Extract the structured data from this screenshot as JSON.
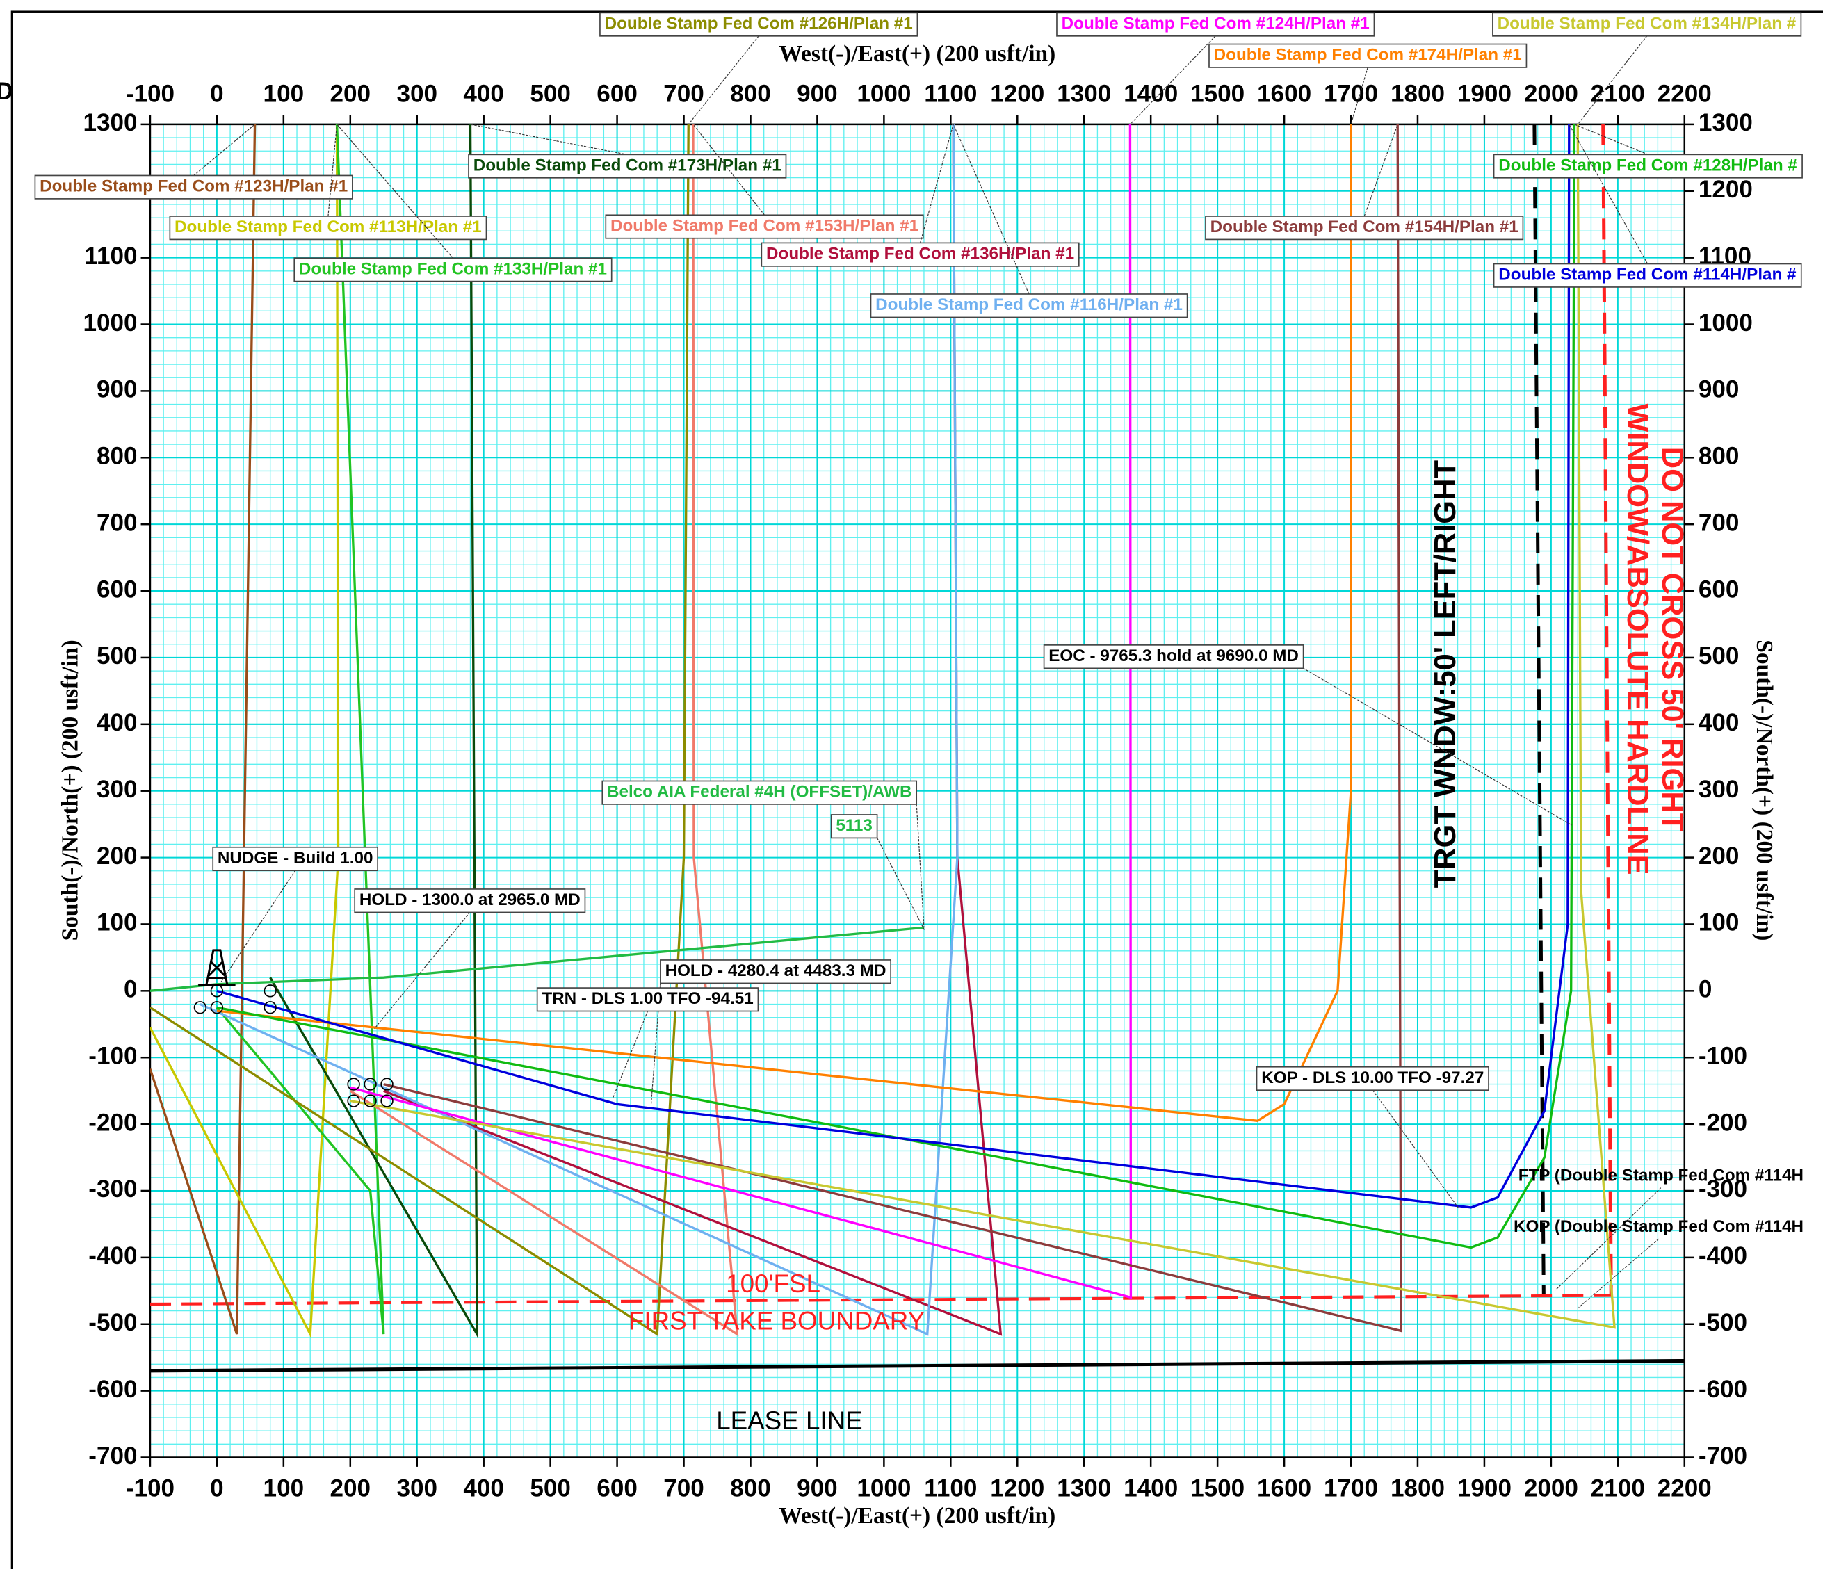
{
  "chart_data": {
    "type": "line",
    "xlabel": "West(-)/East(+) (200 usft/in)",
    "ylabel": "South(-)/North(+) (200 usft/in)",
    "edge_text": "D",
    "xlim": [
      -100,
      2200
    ],
    "ylim": [
      -700,
      1300
    ],
    "xticks": [
      -100,
      0,
      100,
      200,
      300,
      400,
      500,
      600,
      700,
      800,
      900,
      1000,
      1100,
      1200,
      1300,
      1400,
      1500,
      1600,
      1700,
      1800,
      1900,
      2000,
      2100,
      2200
    ],
    "yticks": [
      -700,
      -600,
      -500,
      -400,
      -300,
      -200,
      -100,
      0,
      100,
      200,
      300,
      400,
      500,
      600,
      700,
      800,
      900,
      1000,
      1100,
      1200,
      1300
    ],
    "grid": true,
    "series": [
      {
        "name": "Double Stamp Fed Com #123H/Plan #1",
        "color": "#994d1a",
        "x": [
          -100,
          30,
          57
        ],
        "values": [
          -117,
          -515,
          1300
        ]
      },
      {
        "name": "Double Stamp Fed Com #113H/Plan #1",
        "color": "#c8c800",
        "x": [
          -100,
          140,
          182,
          180
        ],
        "values": [
          -55,
          -515,
          200,
          1300
        ]
      },
      {
        "name": "Double Stamp Fed Com #133H/Plan #1",
        "color": "#22c422",
        "x": [
          0,
          230,
          250,
          180
        ],
        "values": [
          -25,
          -300,
          -515,
          1300
        ]
      },
      {
        "name": "Double Stamp Fed Com #173H/Plan #1",
        "color": "#0a4a0a",
        "x": [
          80,
          390,
          380
        ],
        "values": [
          20,
          -515,
          1300
        ]
      },
      {
        "name": "Double Stamp Fed Com #126H/Plan #1",
        "color": "#8c8c00",
        "x": [
          -100,
          660,
          700,
          707
        ],
        "values": [
          -25,
          -515,
          200,
          1300
        ]
      },
      {
        "name": "Double Stamp Fed Com #153H/Plan #1",
        "color": "#f07a6a",
        "x": [
          200,
          780,
          715,
          714
        ],
        "values": [
          -150,
          -515,
          200,
          1300
        ]
      },
      {
        "name": "Double Stamp Fed Com #136H/Plan #1",
        "color": "#b0103c",
        "x": [
          250,
          1175,
          1110,
          1104
        ],
        "values": [
          -150,
          -515,
          200,
          1300
        ]
      },
      {
        "name": "Double Stamp Fed Com #116H/Plan #1",
        "color": "#6fb0f0",
        "x": [
          -25,
          1065,
          1110,
          1104
        ],
        "values": [
          -20,
          -515,
          200,
          1300
        ]
      },
      {
        "name": "Double Stamp Fed Com #124H/Plan #1",
        "color": "#ff00ff",
        "x": [
          200,
          1370,
          1369
        ],
        "values": [
          -145,
          -460,
          1300
        ]
      },
      {
        "name": "Double Stamp Fed Com #174H/Plan #1",
        "color": "#ff8000",
        "x": [
          0,
          1560,
          1600,
          1680,
          1700,
          1700
        ],
        "values": [
          -30,
          -195,
          -170,
          0,
          300,
          1300
        ]
      },
      {
        "name": "Double Stamp Fed Com #154H/Plan #1",
        "color": "#8c3c3c",
        "x": [
          250,
          1775,
          1770
        ],
        "values": [
          -140,
          -510,
          1300
        ]
      },
      {
        "name": "Double Stamp Fed Com #134H/Plan #",
        "color": "#c8c830",
        "x": [
          200,
          2095,
          2045,
          2040
        ],
        "values": [
          -165,
          -505,
          150,
          1300
        ]
      },
      {
        "name": "Double Stamp Fed Com #128H/Plan #",
        "color": "#11bb11",
        "x": [
          0,
          1880,
          1920,
          1990,
          2030,
          2035
        ],
        "values": [
          -25,
          -385,
          -370,
          -250,
          0,
          1300
        ]
      },
      {
        "name": "Double Stamp Fed Com #114H/Plan #",
        "color": "#0000dd",
        "x": [
          0,
          600,
          1880,
          1920,
          1990,
          2025,
          2027
        ],
        "values": [
          0,
          -170,
          -325,
          -310,
          -180,
          100,
          1300
        ]
      },
      {
        "name": "Belco AIA Federal #4H (OFFSET)/AWB",
        "color": "#22bb44",
        "x": [
          -100,
          0,
          250,
          1060
        ],
        "values": [
          0,
          10,
          20,
          95
        ]
      }
    ],
    "boundaries": [
      {
        "label": "LEASE LINE",
        "color": "#000000",
        "dashed": false,
        "x": [
          -100,
          2200
        ],
        "values": [
          -570,
          -555
        ]
      },
      {
        "label": "100'FSL",
        "sublabel": "FIRST TAKE BOUNDARY",
        "color": "#ff2020",
        "dashed": true,
        "x": [
          -100,
          2090
        ],
        "values": [
          -470,
          -457
        ]
      },
      {
        "label": "TRGT WNDW:50' LEFT/RIGHT",
        "color": "#000000",
        "dashed": true,
        "x": [
          1975,
          1989
        ],
        "values": [
          1300,
          -455
        ]
      },
      {
        "label": "DO NOT CROSS 50' RIGHT",
        "sublabel": "WINDOW/ABSOLUTE HARDLINE",
        "color": "#ff2020",
        "dashed": true,
        "x": [
          2078,
          2090
        ],
        "values": [
          1300,
          -455
        ]
      }
    ],
    "annotations": [
      "NUDGE - Build 1.00",
      "HOLD - 1300.0 at 2965.0 MD",
      "HOLD - 4280.4 at 4483.3 MD",
      "TRN - DLS 1.00 TFO -94.51",
      "EOC - 9765.3 hold at 9690.0 MD",
      "KOP - DLS 10.00 TFO -97.27",
      "FTP (Double Stamp Fed Com #114H",
      "KOP (Double Stamp Fed Com #114H",
      "5113"
    ]
  }
}
